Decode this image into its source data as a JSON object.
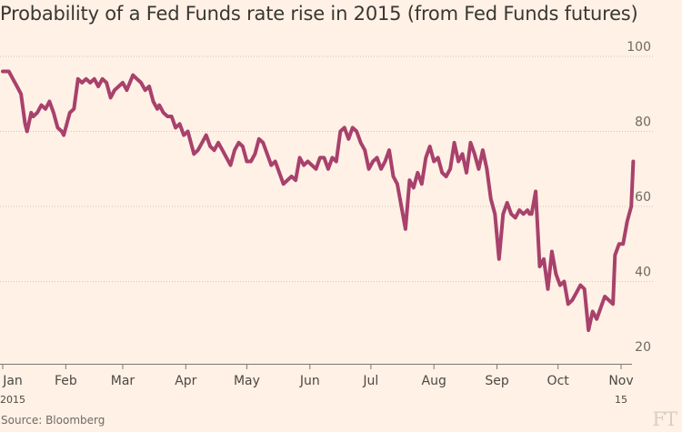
{
  "title": "Probability of a Fed Funds rate rise in 2015 (from Fed Funds futures)",
  "source": "Source: Bloomberg",
  "logo": "FT",
  "colors": {
    "background": "#fff1e5",
    "series": "#a8416c",
    "grid": "#cfc4bb",
    "text": "#43403d"
  },
  "chart_data": {
    "type": "line",
    "title": "Probability of a Fed Funds rate rise in 2015 (from Fed Funds futures)",
    "xlabel": "",
    "ylabel": "",
    "ylim": [
      20,
      100
    ],
    "yticks": [
      20,
      40,
      60,
      80,
      100
    ],
    "ytick_position": "right",
    "xtick_labels": [
      "Jan",
      "Feb",
      "Mar",
      "Apr",
      "May",
      "Jun",
      "Jul",
      "Aug",
      "Sep",
      "Oct",
      "Nov"
    ],
    "xtick_sublabels": {
      "Jan": "2015",
      "Nov": "15"
    },
    "grid": "horizontal dotted",
    "legend": "none",
    "series": [
      {
        "x": [
          "2015-01-01",
          "2015-01-04",
          "2015-01-06",
          "2015-01-08",
          "2015-01-10",
          "2015-01-12",
          "2015-01-13",
          "2015-01-15",
          "2015-01-16",
          "2015-01-18",
          "2015-01-20",
          "2015-01-22",
          "2015-01-24",
          "2015-01-26",
          "2015-01-28",
          "2015-01-30",
          "2015-01-31",
          "2015-02-03",
          "2015-02-05",
          "2015-02-07",
          "2015-02-09",
          "2015-02-11",
          "2015-02-13",
          "2015-02-15",
          "2015-02-17",
          "2015-02-19",
          "2015-02-21",
          "2015-02-23",
          "2015-02-25",
          "2015-02-27",
          "2015-03-01",
          "2015-03-03",
          "2015-03-06",
          "2015-03-08",
          "2015-03-10",
          "2015-03-12",
          "2015-03-14",
          "2015-03-16",
          "2015-03-18",
          "2015-03-19",
          "2015-03-21",
          "2015-03-23",
          "2015-03-25",
          "2015-03-27",
          "2015-03-29",
          "2015-03-31",
          "2015-04-02",
          "2015-04-03",
          "2015-04-05",
          "2015-04-07",
          "2015-04-09",
          "2015-04-11",
          "2015-04-13",
          "2015-04-15",
          "2015-04-17",
          "2015-04-19",
          "2015-04-21",
          "2015-04-23",
          "2015-04-25",
          "2015-04-27",
          "2015-04-29",
          "2015-05-01",
          "2015-05-03",
          "2015-05-05",
          "2015-05-07",
          "2015-05-09",
          "2015-05-11",
          "2015-05-13",
          "2015-05-15",
          "2015-05-17",
          "2015-05-19",
          "2015-05-21",
          "2015-05-23",
          "2015-05-25",
          "2015-05-27",
          "2015-05-29",
          "2015-05-31",
          "2015-06-02",
          "2015-06-04",
          "2015-06-06",
          "2015-06-08",
          "2015-06-10",
          "2015-06-12",
          "2015-06-14",
          "2015-06-16",
          "2015-06-18",
          "2015-06-20",
          "2015-06-22",
          "2015-06-24",
          "2015-06-26",
          "2015-06-28",
          "2015-06-30",
          "2015-07-02",
          "2015-07-04",
          "2015-07-06",
          "2015-07-08",
          "2015-07-10",
          "2015-07-12",
          "2015-07-14",
          "2015-07-16",
          "2015-07-18",
          "2015-07-20",
          "2015-07-22",
          "2015-07-24",
          "2015-07-26",
          "2015-07-28",
          "2015-07-30",
          "2015-08-01",
          "2015-08-03",
          "2015-08-05",
          "2015-08-07",
          "2015-08-09",
          "2015-08-11",
          "2015-08-13",
          "2015-08-15",
          "2015-08-17",
          "2015-08-19",
          "2015-08-21",
          "2015-08-23",
          "2015-08-25",
          "2015-08-27",
          "2015-08-29",
          "2015-08-31",
          "2015-09-02",
          "2015-09-04",
          "2015-09-06",
          "2015-09-08",
          "2015-09-10",
          "2015-09-12",
          "2015-09-14",
          "2015-09-16",
          "2015-09-17",
          "2015-09-18",
          "2015-09-20",
          "2015-09-22",
          "2015-09-24",
          "2015-09-26",
          "2015-09-28",
          "2015-09-30",
          "2015-10-02",
          "2015-10-04",
          "2015-10-06",
          "2015-10-08",
          "2015-10-10",
          "2015-10-12",
          "2015-10-14",
          "2015-10-16",
          "2015-10-18",
          "2015-10-20",
          "2015-10-22",
          "2015-10-24",
          "2015-10-26",
          "2015-10-28",
          "2015-10-29",
          "2015-10-31",
          "2015-11-02",
          "2015-11-04",
          "2015-11-06",
          "2015-11-07"
        ],
        "values": [
          96,
          96,
          94,
          92,
          90,
          82,
          80,
          85,
          84,
          85,
          87,
          86,
          88,
          85,
          81,
          80,
          79,
          85,
          86,
          94,
          93,
          94,
          93,
          94,
          92,
          94,
          93,
          89,
          91,
          92,
          93,
          91,
          95,
          94,
          93,
          91,
          92,
          88,
          86,
          87,
          85,
          84,
          84,
          81,
          82,
          79,
          80,
          78,
          74,
          75,
          77,
          79,
          76,
          75,
          77,
          75,
          73,
          71,
          75,
          77,
          76,
          72,
          72,
          74,
          78,
          77,
          74,
          71,
          72,
          69,
          66,
          67,
          68,
          67,
          73,
          71,
          72,
          71,
          70,
          73,
          73,
          70,
          73,
          72,
          80,
          81,
          78,
          81,
          80,
          77,
          75,
          70,
          72,
          73,
          70,
          72,
          75,
          68,
          66,
          60,
          54,
          67,
          65,
          69,
          66,
          73,
          76,
          72,
          73,
          69,
          68,
          70,
          77,
          72,
          74,
          69,
          77,
          74,
          70,
          75,
          70,
          62,
          58,
          46,
          58,
          61,
          58,
          57,
          59,
          58,
          59,
          58,
          58,
          64,
          44,
          46,
          38,
          48,
          42,
          39,
          40,
          34,
          35,
          37,
          39,
          38,
          27,
          32,
          30,
          33,
          36,
          35,
          34,
          47,
          50,
          50,
          56,
          60,
          72
        ]
      }
    ]
  }
}
